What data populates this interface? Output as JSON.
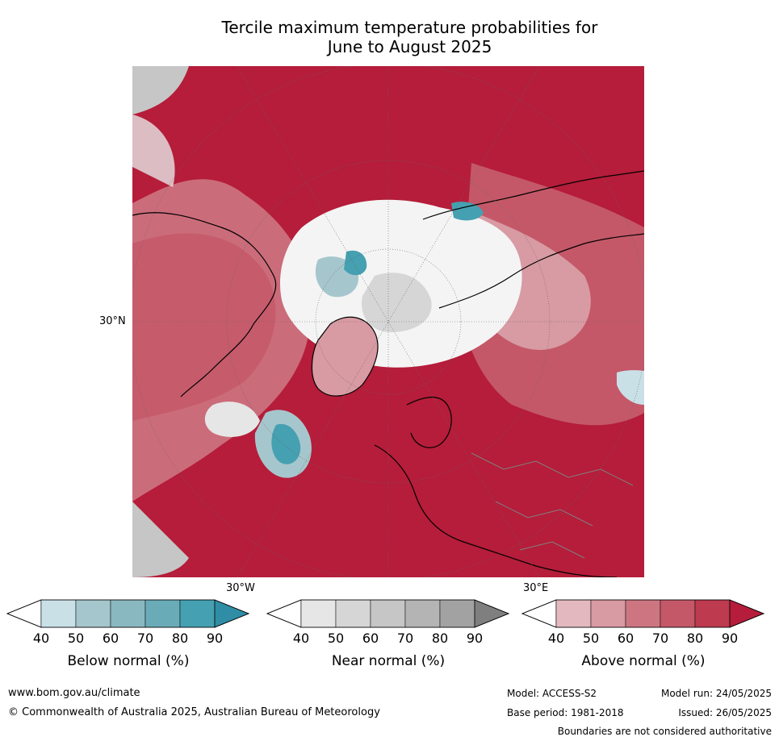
{
  "title": {
    "line1": "Tercile maximum temperature probabilities for",
    "line2": "June to August 2025"
  },
  "map": {
    "lat_label": "30°N",
    "lon_labels": [
      "30°W",
      "30°E"
    ]
  },
  "colorbars": [
    {
      "title": "Below normal (%)",
      "ticks": [
        "40",
        "50",
        "60",
        "70",
        "80",
        "90"
      ],
      "colors": [
        "#c9e0e7",
        "#a6c6cd",
        "#8ab8c1",
        "#6aabb8",
        "#45a0b1",
        "#2f8ea5"
      ]
    },
    {
      "title": "Near normal (%)",
      "ticks": [
        "40",
        "50",
        "60",
        "70",
        "80",
        "90"
      ],
      "colors": [
        "#e6e6e6",
        "#d6d6d6",
        "#c6c6c6",
        "#b4b4b4",
        "#a2a2a2",
        "#7f7f7f"
      ]
    },
    {
      "title": "Above normal (%)",
      "ticks": [
        "40",
        "50",
        "60",
        "70",
        "80",
        "90"
      ],
      "colors": [
        "#e3b9bf",
        "#d89aa3",
        "#cd7682",
        "#c45868",
        "#bd3a4f",
        "#b51d3a"
      ]
    }
  ],
  "footer": {
    "url": "www.bom.gov.au/climate",
    "copyright": "© Commonwealth of Australia 2025, Australian Bureau of Meteorology",
    "model": "Model: ACCESS-S2",
    "model_run": "Model run: 24/05/2025",
    "base_period": "Base period: 1981-2018",
    "issued": "Issued: 26/05/2025",
    "disclaimer": "Boundaries are not considered authoritative"
  }
}
